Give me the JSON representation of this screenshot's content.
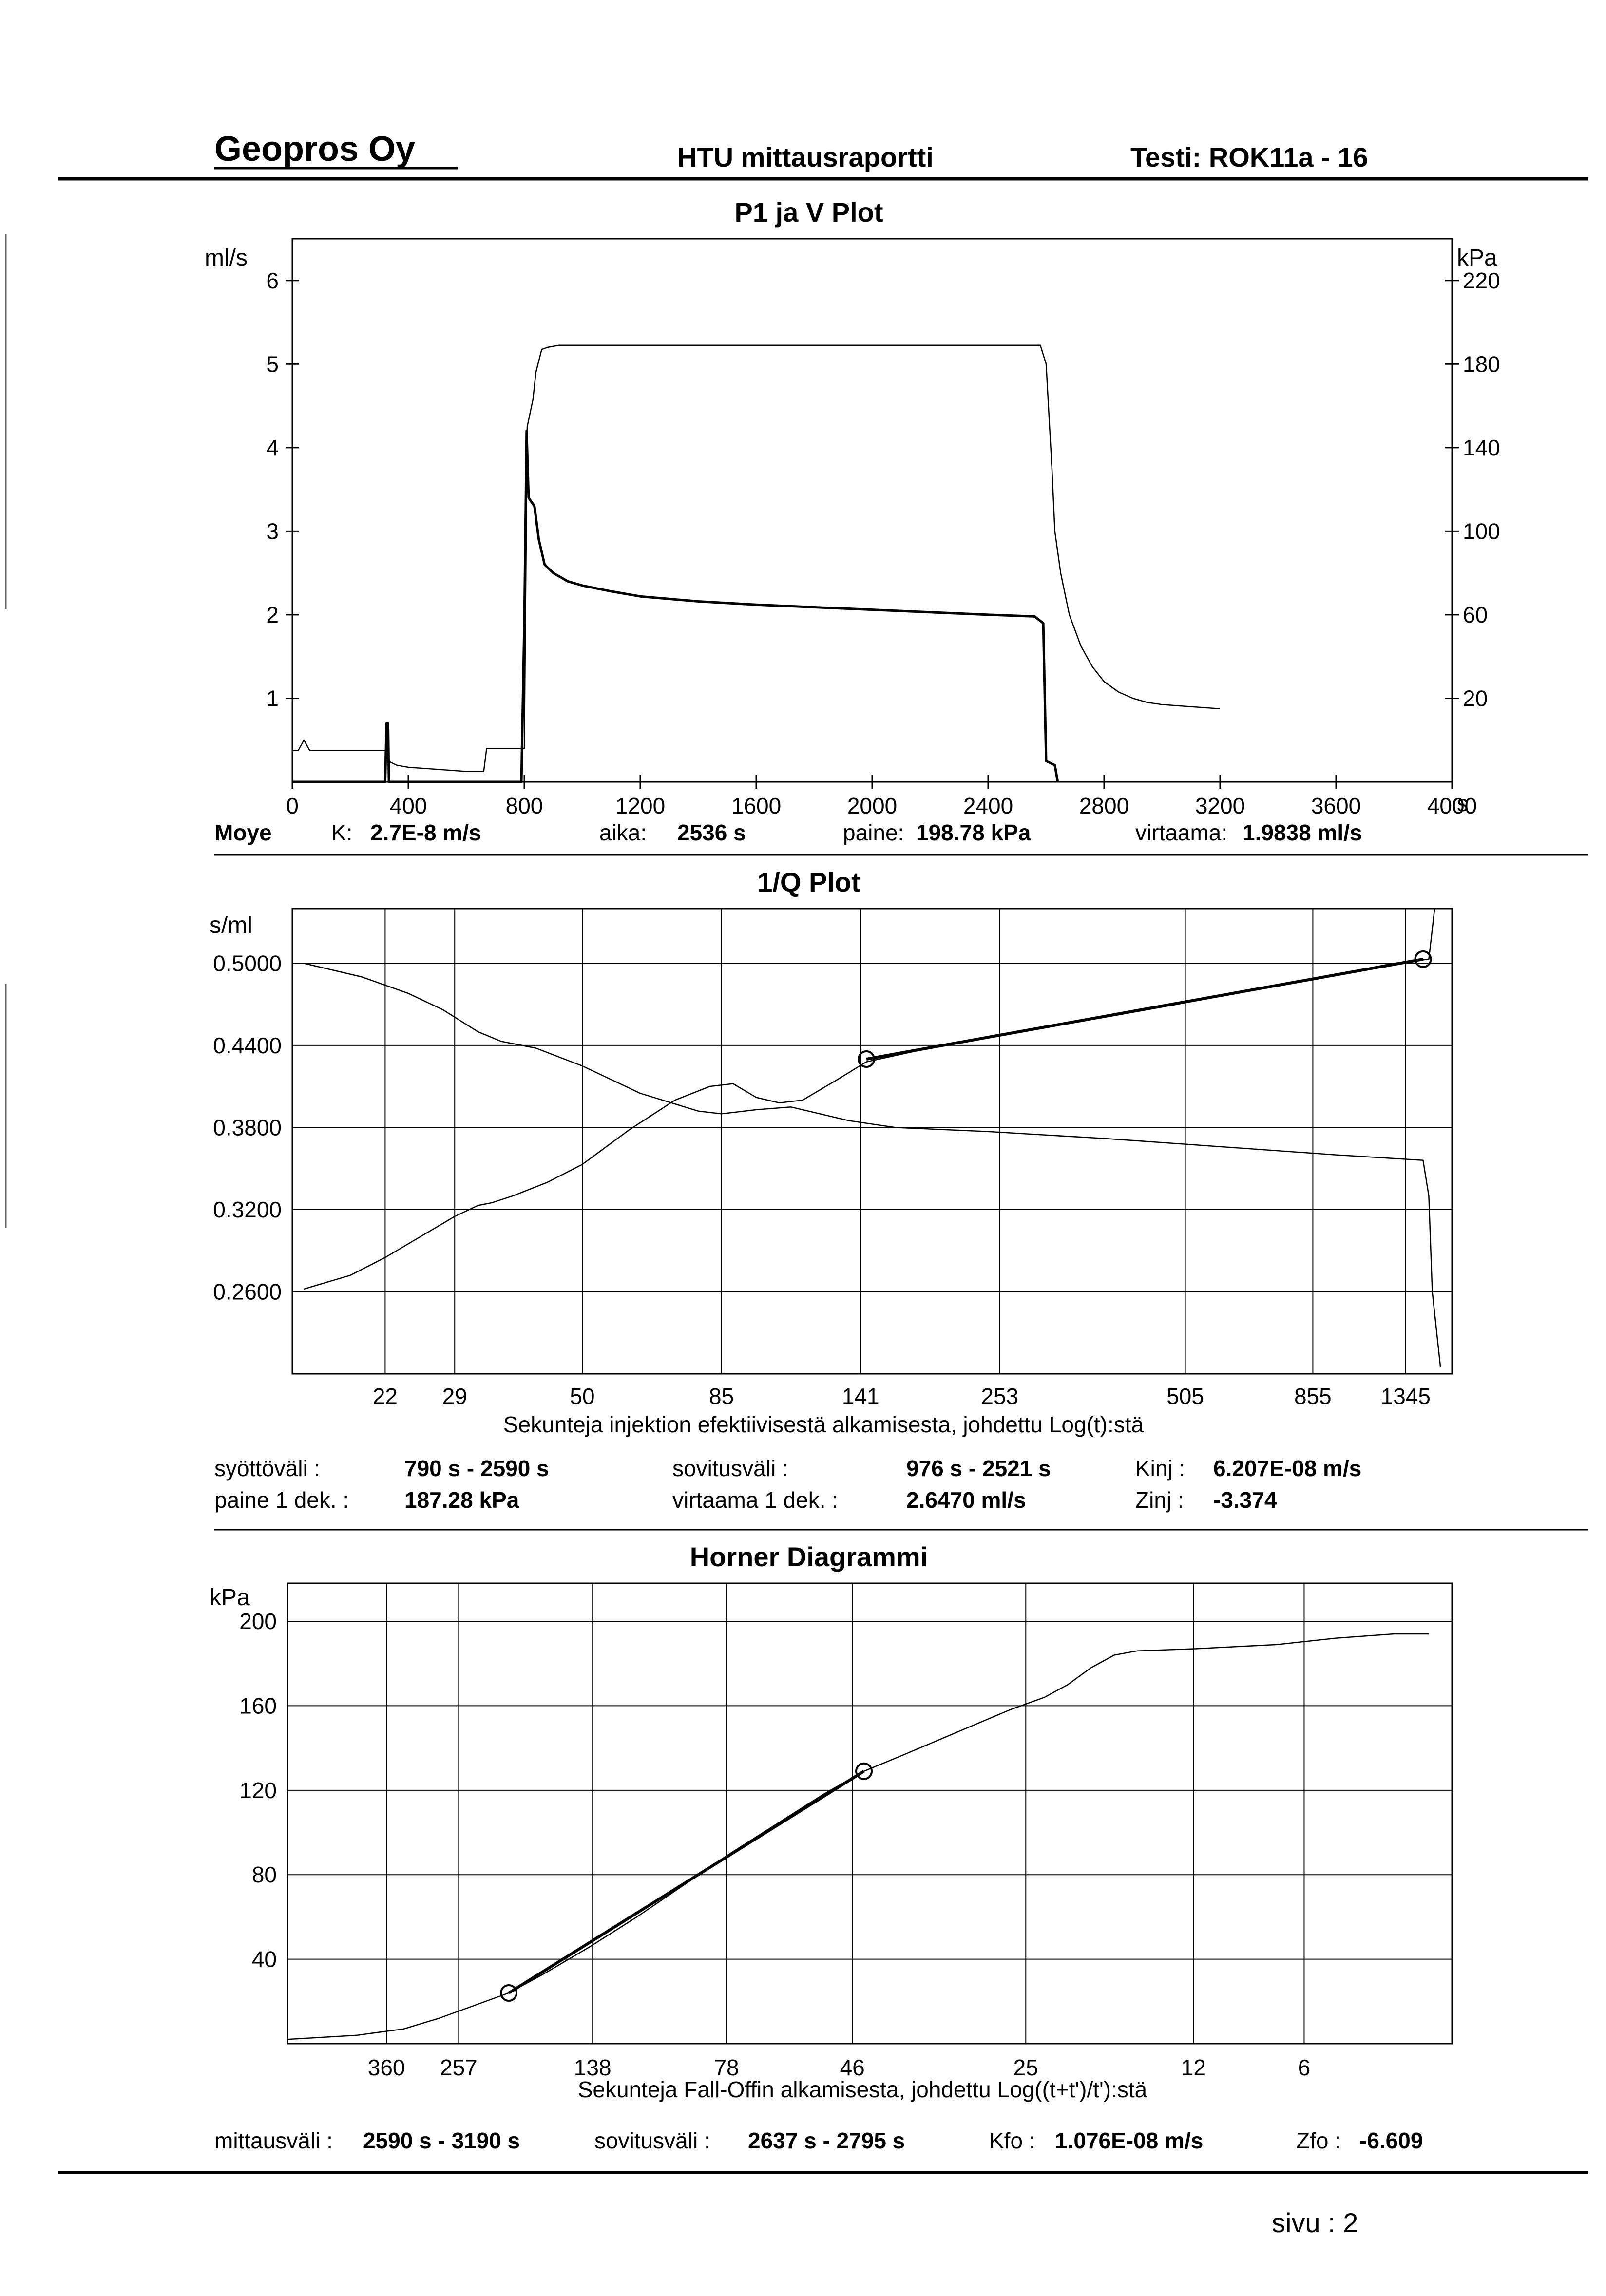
{
  "header": {
    "company": "Geopros Oy",
    "report_title": "HTU mittausraportti",
    "test_id": "Testi: ROK11a - 16"
  },
  "chart_data": [
    {
      "type": "line",
      "title": "P1 ja V Plot",
      "ylabel_left": "ml/s",
      "ylabel_right": "kPa",
      "xlabel_unit": "s",
      "xlim": [
        0,
        4000
      ],
      "ylim_left": [
        0,
        6.5
      ],
      "ylim_right": [
        -20,
        240
      ],
      "x_ticks": [
        "0",
        "400",
        "800",
        "1200",
        "1600",
        "2000",
        "2400",
        "2800",
        "3200",
        "3600",
        "4000"
      ],
      "y_ticks_left": [
        "1",
        "2",
        "3",
        "4",
        "5",
        "6"
      ],
      "y_ticks_right": [
        "20",
        "60",
        "100",
        "140",
        "180",
        "220"
      ],
      "grid": false,
      "series": [
        {
          "axis": "left",
          "points": [
            [
              0,
              0
            ],
            [
              300,
              0
            ],
            [
              320,
              0
            ],
            [
              325,
              0.7
            ],
            [
              330,
              0.7
            ],
            [
              333,
              0
            ],
            [
              790,
              0
            ],
            [
              800,
              1.9
            ],
            [
              808,
              4.2
            ],
            [
              815,
              3.4
            ],
            [
              835,
              3.3
            ],
            [
              850,
              2.9
            ],
            [
              870,
              2.6
            ],
            [
              900,
              2.5
            ],
            [
              950,
              2.4
            ],
            [
              1000,
              2.35
            ],
            [
              1100,
              2.28
            ],
            [
              1200,
              2.22
            ],
            [
              1400,
              2.16
            ],
            [
              1600,
              2.12
            ],
            [
              1800,
              2.09
            ],
            [
              2000,
              2.06
            ],
            [
              2200,
              2.03
            ],
            [
              2400,
              2.0
            ],
            [
              2560,
              1.98
            ],
            [
              2590,
              1.9
            ],
            [
              2600,
              0.25
            ],
            [
              2630,
              0.2
            ],
            [
              2640,
              0
            ]
          ]
        },
        {
          "axis": "right",
          "points": [
            [
              0,
              -5
            ],
            [
              20,
              -5
            ],
            [
              40,
              0
            ],
            [
              60,
              -5
            ],
            [
              300,
              -5
            ],
            [
              320,
              -5
            ],
            [
              330,
              -10
            ],
            [
              360,
              -12
            ],
            [
              400,
              -13
            ],
            [
              500,
              -14
            ],
            [
              600,
              -15
            ],
            [
              660,
              -15
            ],
            [
              670,
              -4
            ],
            [
              800,
              -4
            ],
            [
              810,
              150
            ],
            [
              830,
              163
            ],
            [
              840,
              176
            ],
            [
              860,
              187
            ],
            [
              880,
              188
            ],
            [
              920,
              189
            ],
            [
              2580,
              189
            ],
            [
              2600,
              180
            ],
            [
              2610,
              155
            ],
            [
              2620,
              130
            ],
            [
              2630,
              100
            ],
            [
              2650,
              80
            ],
            [
              2680,
              60
            ],
            [
              2720,
              45
            ],
            [
              2760,
              35
            ],
            [
              2800,
              28
            ],
            [
              2850,
              23
            ],
            [
              2900,
              20
            ],
            [
              2950,
              18
            ],
            [
              3000,
              17
            ],
            [
              3100,
              16
            ],
            [
              3200,
              15
            ]
          ]
        }
      ]
    },
    {
      "type": "line",
      "title": "1/Q Plot",
      "ylabel": "s/ml",
      "xlabel": "Sekunteja injektion efektiivisestä alkamisesta, johdettu Log(t):stä",
      "x_tick_labels": [
        "22",
        "29",
        "50",
        "85",
        "141",
        "253",
        "505",
        "855",
        "1345"
      ],
      "y_ticks": [
        "0.5000",
        "0.4400",
        "0.3800",
        "0.3200",
        "0.2600"
      ],
      "ylim": [
        0.2,
        0.54
      ],
      "grid": true,
      "series": [
        {
          "points": [
            [
              0.01,
              0.262
            ],
            [
              0.05,
              0.272
            ],
            [
              0.08,
              0.285
            ],
            [
              0.11,
              0.3
            ],
            [
              0.14,
              0.315
            ],
            [
              0.16,
              0.323
            ],
            [
              0.172,
              0.325
            ],
            [
              0.19,
              0.33
            ],
            [
              0.22,
              0.34
            ],
            [
              0.25,
              0.353
            ],
            [
              0.29,
              0.378
            ],
            [
              0.33,
              0.4
            ],
            [
              0.36,
              0.41
            ],
            [
              0.38,
              0.412
            ],
            [
              0.4,
              0.402
            ],
            [
              0.42,
              0.398
            ],
            [
              0.44,
              0.4
            ],
            [
              0.47,
              0.415
            ],
            [
              0.495,
              0.428
            ],
            [
              0.56,
              0.44
            ],
            [
              0.65,
              0.453
            ],
            [
              0.75,
              0.468
            ],
            [
              0.85,
              0.484
            ],
            [
              0.95,
              0.5
            ],
            [
              0.98,
              0.503
            ],
            [
              0.985,
              0.54
            ]
          ]
        },
        {
          "points": [
            [
              0.01,
              0.5
            ],
            [
              0.06,
              0.49
            ],
            [
              0.1,
              0.478
            ],
            [
              0.13,
              0.466
            ],
            [
              0.16,
              0.45
            ],
            [
              0.18,
              0.443
            ],
            [
              0.21,
              0.438
            ],
            [
              0.25,
              0.425
            ],
            [
              0.3,
              0.405
            ],
            [
              0.35,
              0.392
            ],
            [
              0.37,
              0.39
            ],
            [
              0.4,
              0.393
            ],
            [
              0.43,
              0.395
            ],
            [
              0.48,
              0.385
            ],
            [
              0.52,
              0.38
            ],
            [
              0.6,
              0.377
            ],
            [
              0.7,
              0.372
            ],
            [
              0.8,
              0.366
            ],
            [
              0.9,
              0.36
            ],
            [
              0.975,
              0.356
            ],
            [
              0.98,
              0.33
            ],
            [
              0.983,
              0.26
            ],
            [
              0.99,
              0.205
            ]
          ]
        },
        {
          "points": [
            [
              0.495,
              0.43
            ],
            [
              0.975,
              0.503
            ]
          ],
          "fit_points": [
            [
              0.495,
              0.43
            ],
            [
              0.975,
              0.503
            ]
          ]
        }
      ]
    },
    {
      "type": "line",
      "title": "Horner Diagrammi",
      "ylabel": "kPa",
      "xlabel": "Sekunteja Fall-Offin alkamisesta, johdettu Log((t+t')/t'):stä",
      "x_tick_labels": [
        "360",
        "257",
        "138",
        "78",
        "46",
        "25",
        "12",
        "6"
      ],
      "y_ticks": [
        "200",
        "160",
        "120",
        "80",
        "40"
      ],
      "ylim": [
        0,
        218
      ],
      "grid": true,
      "series": [
        {
          "points": [
            [
              0.0,
              2
            ],
            [
              0.06,
              4
            ],
            [
              0.1,
              7
            ],
            [
              0.13,
              12
            ],
            [
              0.16,
              18
            ],
            [
              0.19,
              24
            ],
            [
              0.22,
              33
            ],
            [
              0.26,
              46
            ],
            [
              0.3,
              60
            ],
            [
              0.34,
              75
            ],
            [
              0.38,
              90
            ],
            [
              0.42,
              104
            ],
            [
              0.46,
              118
            ],
            [
              0.495,
              129
            ],
            [
              0.53,
              137
            ],
            [
              0.56,
              144
            ],
            [
              0.59,
              151
            ],
            [
              0.62,
              158
            ],
            [
              0.65,
              164
            ],
            [
              0.67,
              170
            ],
            [
              0.69,
              178
            ],
            [
              0.71,
              184
            ],
            [
              0.73,
              186
            ],
            [
              0.78,
              187
            ],
            [
              0.85,
              189
            ],
            [
              0.9,
              192
            ],
            [
              0.95,
              194
            ],
            [
              0.98,
              194
            ]
          ]
        },
        {
          "points": [
            [
              0.19,
              24
            ],
            [
              0.495,
              129
            ]
          ],
          "fit_points": [
            [
              0.19,
              24
            ],
            [
              0.495,
              129
            ]
          ]
        }
      ]
    }
  ],
  "p1_info": {
    "label": "Moye",
    "k_label": "K:",
    "k_value": "2.7E-8 m/s",
    "aika_label": "aika:",
    "aika_value": "2536 s",
    "paine_label": "paine:",
    "paine_value": "198.78 kPa",
    "virtaama_label": "virtaama:",
    "virtaama_value": "1.9838 ml/s"
  },
  "q_info": {
    "syotto_label": "syöttöväli :",
    "syotto_value": "790 s - 2590 s",
    "sovitus_label": "sovitusväli :",
    "sovitus_value": "976 s  -  2521 s",
    "kinj_label": "Kinj :",
    "kinj_value": "6.207E-08 m/s",
    "paine_label": "paine 1 dek. :",
    "paine_value": "187.28 kPa",
    "virtaama_label": "virtaama 1 dek. :",
    "virtaama_value": "2.6470 ml/s",
    "zinj_label": "Zinj :",
    "zinj_value": "-3.374"
  },
  "horner_info": {
    "mittaus_label": "mittausväli :",
    "mittaus_value": "2590 s - 3190 s",
    "sovitus_label": "sovitusväli :",
    "sovitus_value": "2637 s - 2795 s",
    "kfo_label": "Kfo :",
    "kfo_value": "1.076E-08 m/s",
    "zfo_label": "Zfo :",
    "zfo_value": "-6.609"
  },
  "footer": {
    "page": "sivu :  2"
  }
}
